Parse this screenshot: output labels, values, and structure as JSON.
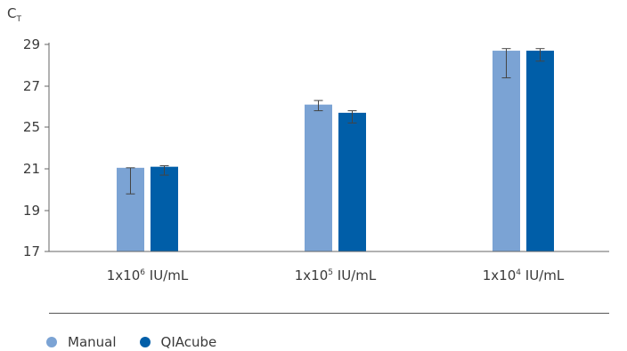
{
  "chart_data": {
    "type": "bar",
    "ylabel_main": "C",
    "ylabel_sub": "T",
    "categories": [
      {
        "base": "1x10",
        "exp": "6",
        "unit": " IU/mL"
      },
      {
        "base": "1x10",
        "exp": "5",
        "unit": " IU/mL"
      },
      {
        "base": "1x10",
        "exp": "4",
        "unit": " IU/mL"
      }
    ],
    "yticks": [
      "29",
      "27",
      "25",
      "21",
      "19",
      "17"
    ],
    "series": [
      {
        "name": "Manual",
        "color": "#7ba3d4",
        "values": [
          21.1,
          26.1,
          28.7
        ],
        "error_low": [
          19.8,
          25.8,
          27.4
        ],
        "error_high": [
          21.1,
          26.3,
          28.8
        ]
      },
      {
        "name": "QIAcube",
        "color": "#005ea8",
        "values": [
          21.2,
          25.7,
          28.7
        ],
        "error_low": [
          20.7,
          25.2,
          28.2
        ],
        "error_high": [
          21.3,
          25.8,
          28.8
        ]
      }
    ],
    "legend_position": "bottom-left",
    "grid": false
  }
}
